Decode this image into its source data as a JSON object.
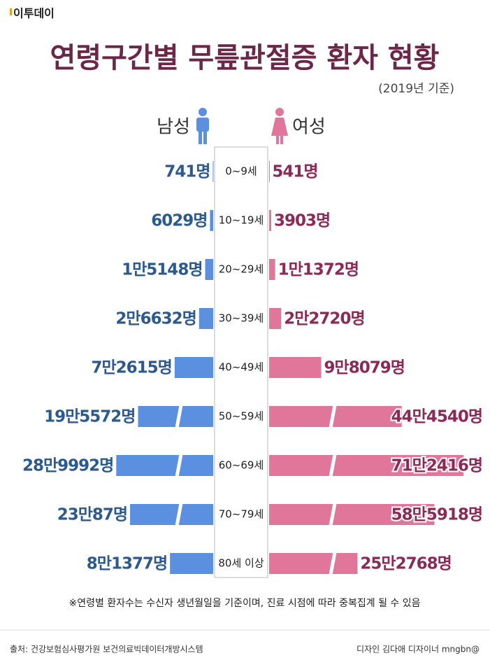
{
  "logo": "이투데이",
  "chart_data": {
    "type": "butterfly-bar",
    "title": "연령구간별 무릎관절증 환자 현황",
    "subtitle": "(2019년 기준)",
    "categories": [
      "0~9세",
      "10~19세",
      "20~29세",
      "30~39세",
      "40~49세",
      "50~59세",
      "60~69세",
      "70~79세",
      "80세 이상"
    ],
    "series": [
      {
        "name": "남성",
        "color": "#5b8fe0",
        "values": [
          741,
          6029,
          15148,
          26632,
          72615,
          195572,
          289992,
          230087,
          81377
        ],
        "value_labels": [
          "741명",
          "6029명",
          "1만5148명",
          "2만6632명",
          "7만2615명",
          "19만5572명",
          "28만9992명",
          "23만87명",
          "8만1377명"
        ]
      },
      {
        "name": "여성",
        "color": "#e0769a",
        "values": [
          541,
          3903,
          11372,
          22720,
          98079,
          444540,
          712416,
          585918,
          252768
        ],
        "value_labels": [
          "541명",
          "3903명",
          "1만1372명",
          "2만2720명",
          "9만8079명",
          "44만4540명",
          "71만2416명",
          "58만5918명",
          "25만2768명"
        ]
      }
    ],
    "footnote": "※연령별 환자수는 수신자 생년월일을 기준이며, 진료 시점에 따라 중복집계 될 수 있음"
  },
  "source": "출처: 건강보험심사평가원 보건의료빅데이터개방시스템",
  "credit": "디자인 김다애 디자이너 mngbn@"
}
